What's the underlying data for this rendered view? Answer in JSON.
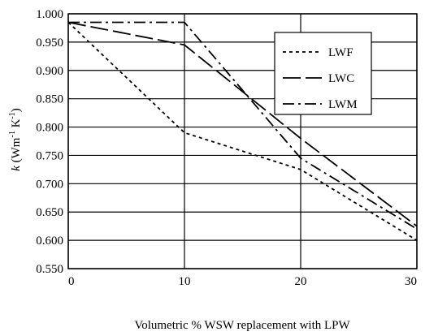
{
  "chart_data": {
    "type": "line",
    "x": [
      0,
      10,
      20,
      30
    ],
    "series": [
      {
        "name": "LWF",
        "values": [
          0.985,
          0.79,
          0.725,
          0.6
        ],
        "dash": "short"
      },
      {
        "name": "LWC",
        "values": [
          0.985,
          0.945,
          0.78,
          0.625
        ],
        "dash": "long"
      },
      {
        "name": "LWM",
        "values": [
          0.985,
          0.985,
          0.745,
          0.62
        ],
        "dash": "dashdot"
      }
    ],
    "xticks": [
      0,
      10,
      20,
      30
    ],
    "xtick_labels": [
      "0",
      "10",
      "20",
      "30"
    ],
    "yticks": [
      0.55,
      0.6,
      0.65,
      0.7,
      0.75,
      0.8,
      0.85,
      0.9,
      0.95,
      1.0
    ],
    "ytick_labels": [
      "0.550",
      "0.600",
      "0.650",
      "0.700",
      "0.750",
      "0.800",
      "0.850",
      "0.900",
      "0.950",
      "1.000"
    ],
    "xlim": [
      0,
      30
    ],
    "ylim": [
      0.55,
      1.0
    ],
    "xlabel": "Volumetric % WSW replacement with LPW",
    "ylabel": {
      "italic": "k",
      "rest": " (Wm",
      "sup1": "-1",
      "mid": " K",
      "sup2": "-1",
      "end": ")"
    },
    "grid": true,
    "legend_position": "top-right",
    "line_color": "#000000"
  }
}
